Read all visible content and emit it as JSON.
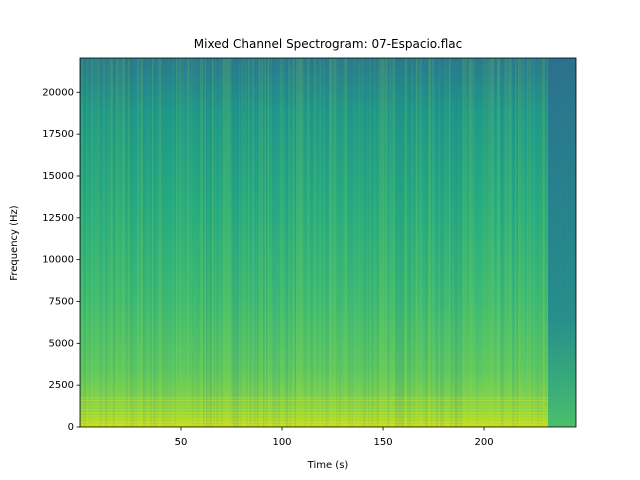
{
  "chart_data": {
    "type": "spectrogram",
    "title": "Mixed Channel Spectrogram: 07-Espacio.flac",
    "x_label": "Time (s)",
    "y_label": "Frequency (Hz)",
    "xlim": [
      0.02,
      245.5
    ],
    "xticks": [
      50,
      100,
      150,
      200
    ],
    "ylim": [
      0,
      22050
    ],
    "yticks": [
      0,
      2500,
      5000,
      7500,
      10000,
      12500,
      15000,
      17500,
      20000
    ],
    "colormap": "viridis"
  }
}
